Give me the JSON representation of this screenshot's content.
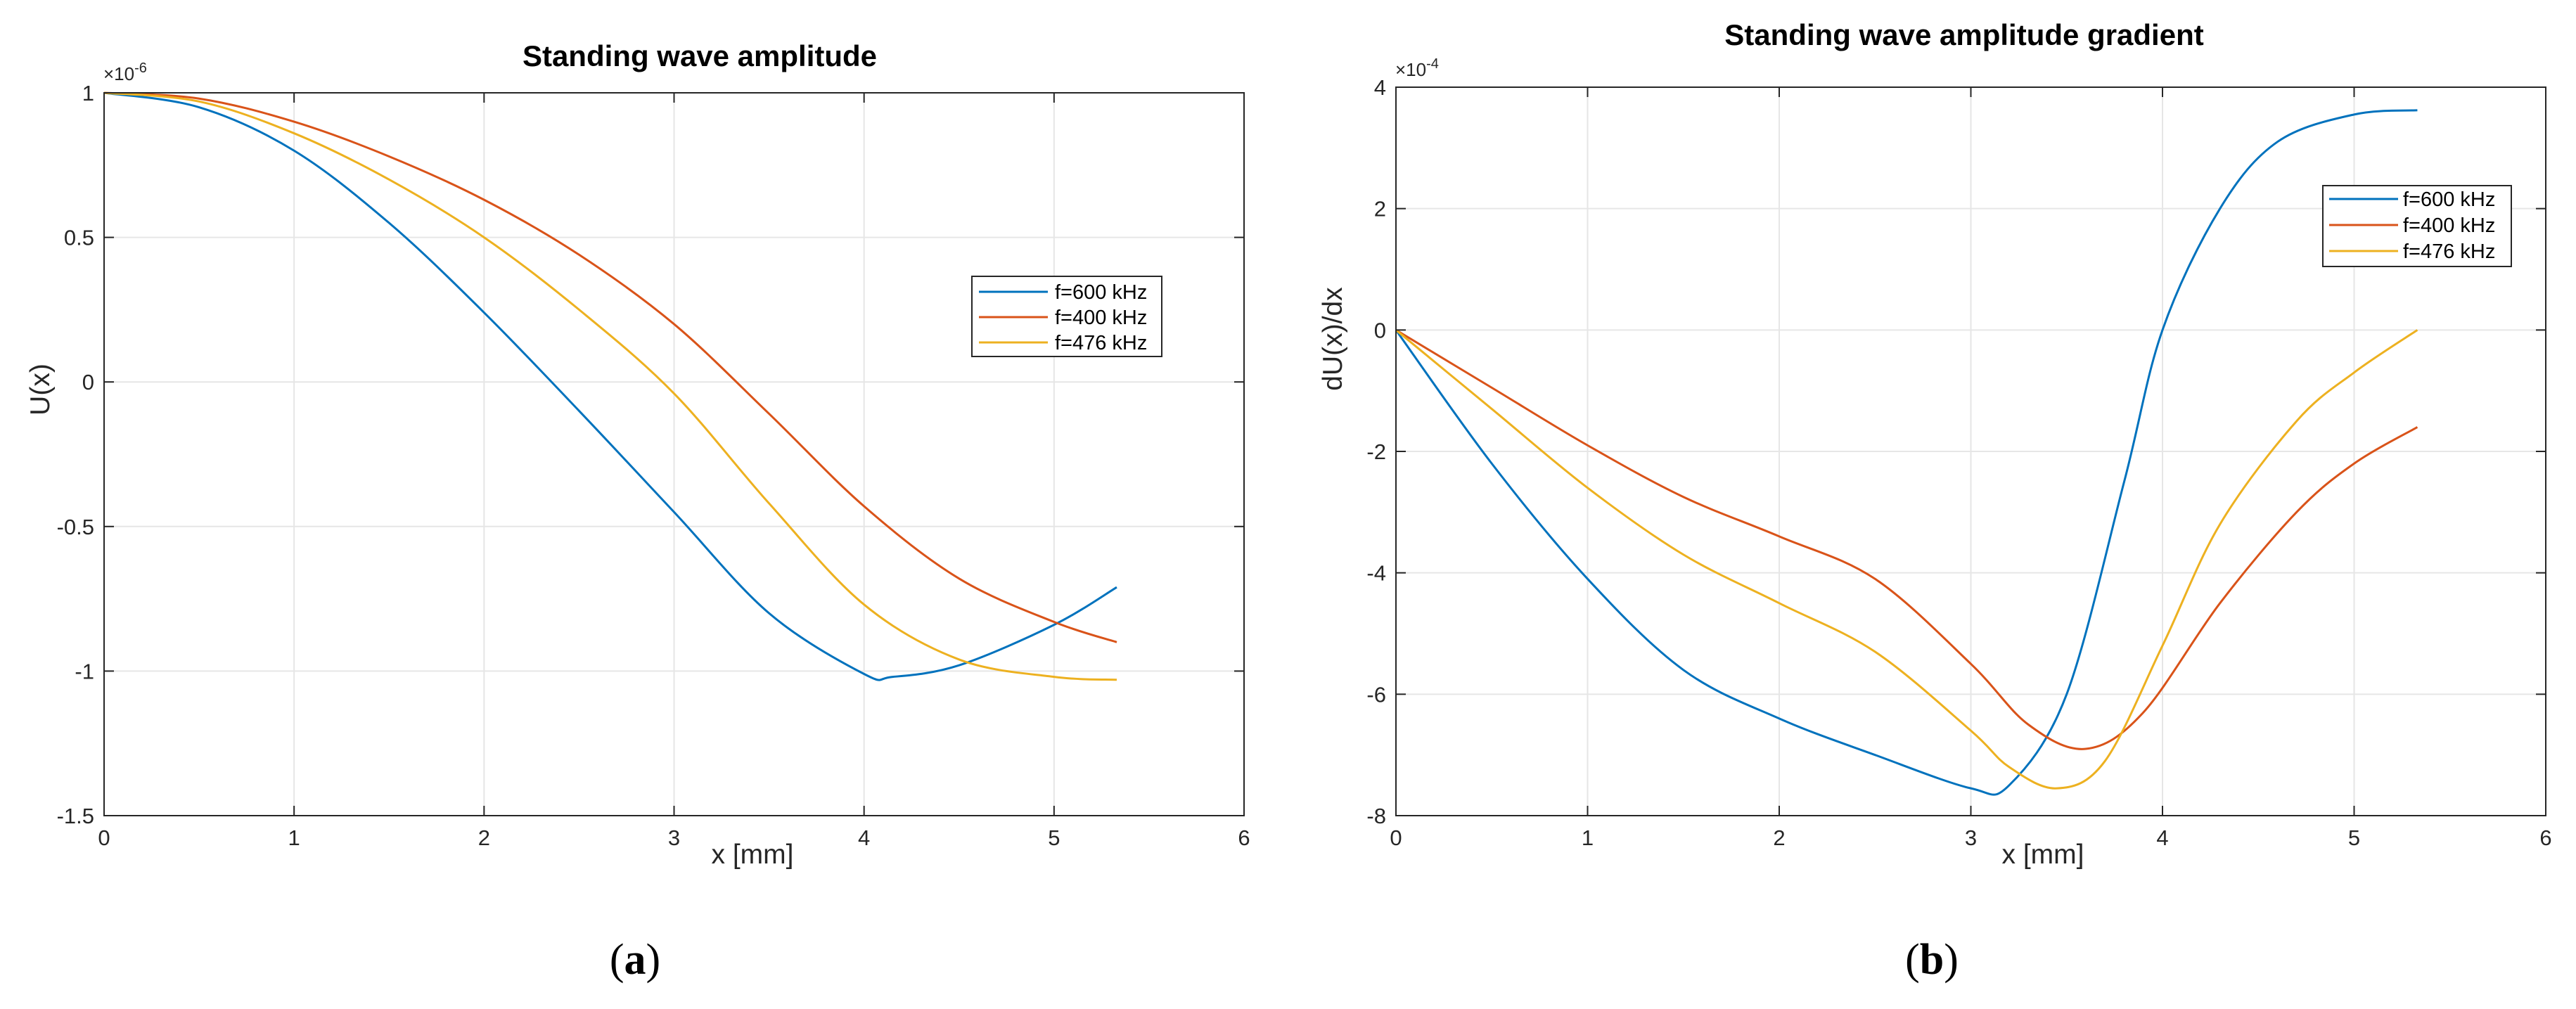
{
  "chart_data": [
    {
      "id": "a",
      "type": "line",
      "title": "Standing wave amplitude",
      "xlabel": "x [mm]",
      "ylabel": "U(x)",
      "y_multiplier_base": "×10",
      "y_multiplier_exp": "-6",
      "caption_letter": "a",
      "xlim": [
        0,
        6
      ],
      "ylim": [
        -1.5,
        1
      ],
      "xticks": [
        0,
        1,
        2,
        3,
        4,
        5,
        6
      ],
      "xtick_labels": [
        "0",
        "1",
        "2",
        "3",
        "4",
        "5",
        "6"
      ],
      "yticks": [
        -1.5,
        -1,
        -0.5,
        0,
        0.5,
        1
      ],
      "ytick_labels": [
        "-1.5",
        "-1",
        "-0.5",
        "0",
        "0.5",
        "1"
      ],
      "grid": true,
      "legend_position": "right",
      "series": [
        {
          "name": "f=600 kHz",
          "color": "#0072BD",
          "x": [
            0,
            0.5,
            1,
            1.5,
            2,
            2.5,
            3,
            3.5,
            4,
            4.15,
            4.5,
            5,
            5.33
          ],
          "y": [
            1.0,
            0.95,
            0.8,
            0.55,
            0.24,
            -0.1,
            -0.45,
            -0.8,
            -1.01,
            -1.02,
            -0.98,
            -0.84,
            -0.71
          ]
        },
        {
          "name": "f=400 kHz",
          "color": "#D95319",
          "x": [
            0,
            0.5,
            1,
            1.5,
            2,
            2.5,
            3,
            3.5,
            4,
            4.5,
            5,
            5.33
          ],
          "y": [
            1.0,
            0.98,
            0.9,
            0.78,
            0.63,
            0.44,
            0.2,
            -0.11,
            -0.43,
            -0.68,
            -0.83,
            -0.9
          ]
        },
        {
          "name": "f=476 kHz",
          "color": "#EDB120",
          "x": [
            0,
            0.5,
            1,
            1.5,
            2,
            2.5,
            3,
            3.5,
            4,
            4.5,
            5,
            5.33
          ],
          "y": [
            1.0,
            0.97,
            0.86,
            0.7,
            0.5,
            0.25,
            -0.04,
            -0.42,
            -0.77,
            -0.96,
            -1.02,
            -1.03
          ]
        }
      ]
    },
    {
      "id": "b",
      "type": "line",
      "title": "Standing wave amplitude gradient",
      "xlabel": "x [mm]",
      "ylabel": "dU(x)/dx",
      "y_multiplier_base": "×10",
      "y_multiplier_exp": "-4",
      "caption_letter": "b",
      "xlim": [
        0,
        6
      ],
      "ylim": [
        -8,
        4
      ],
      "xticks": [
        0,
        1,
        2,
        3,
        4,
        5,
        6
      ],
      "xtick_labels": [
        "0",
        "1",
        "2",
        "3",
        "4",
        "5",
        "6"
      ],
      "yticks": [
        -8,
        -6,
        -4,
        -2,
        0,
        2,
        4
      ],
      "ytick_labels": [
        "-8",
        "-6",
        "-4",
        "-2",
        "0",
        "2",
        "4"
      ],
      "grid": true,
      "legend_position": "top-right",
      "series": [
        {
          "name": "f=600 kHz",
          "color": "#0072BD",
          "x": [
            0,
            0.5,
            1,
            1.5,
            2,
            2.5,
            3,
            3.2,
            3.5,
            3.8,
            4,
            4.3,
            4.6,
            5,
            5.33
          ],
          "y": [
            0,
            -2.2,
            -4.1,
            -5.6,
            -6.4,
            -7.0,
            -7.55,
            -7.5,
            -6.0,
            -2.5,
            0,
            2.0,
            3.1,
            3.55,
            3.62
          ]
        },
        {
          "name": "f=400 kHz",
          "color": "#D95319",
          "x": [
            0,
            0.5,
            1,
            1.5,
            2,
            2.5,
            3,
            3.3,
            3.6,
            3.9,
            4.3,
            4.7,
            5,
            5.33
          ],
          "y": [
            0,
            -0.95,
            -1.9,
            -2.75,
            -3.4,
            -4.1,
            -5.5,
            -6.5,
            -6.9,
            -6.3,
            -4.5,
            -3.0,
            -2.2,
            -1.6
          ]
        },
        {
          "name": "f=476 kHz",
          "color": "#EDB120",
          "x": [
            0,
            0.5,
            1,
            1.5,
            2,
            2.5,
            3,
            3.2,
            3.45,
            3.7,
            4,
            4.3,
            4.7,
            5,
            5.33
          ],
          "y": [
            0,
            -1.3,
            -2.6,
            -3.7,
            -4.5,
            -5.3,
            -6.6,
            -7.2,
            -7.55,
            -7.1,
            -5.2,
            -3.2,
            -1.5,
            -0.7,
            0
          ]
        }
      ]
    }
  ]
}
